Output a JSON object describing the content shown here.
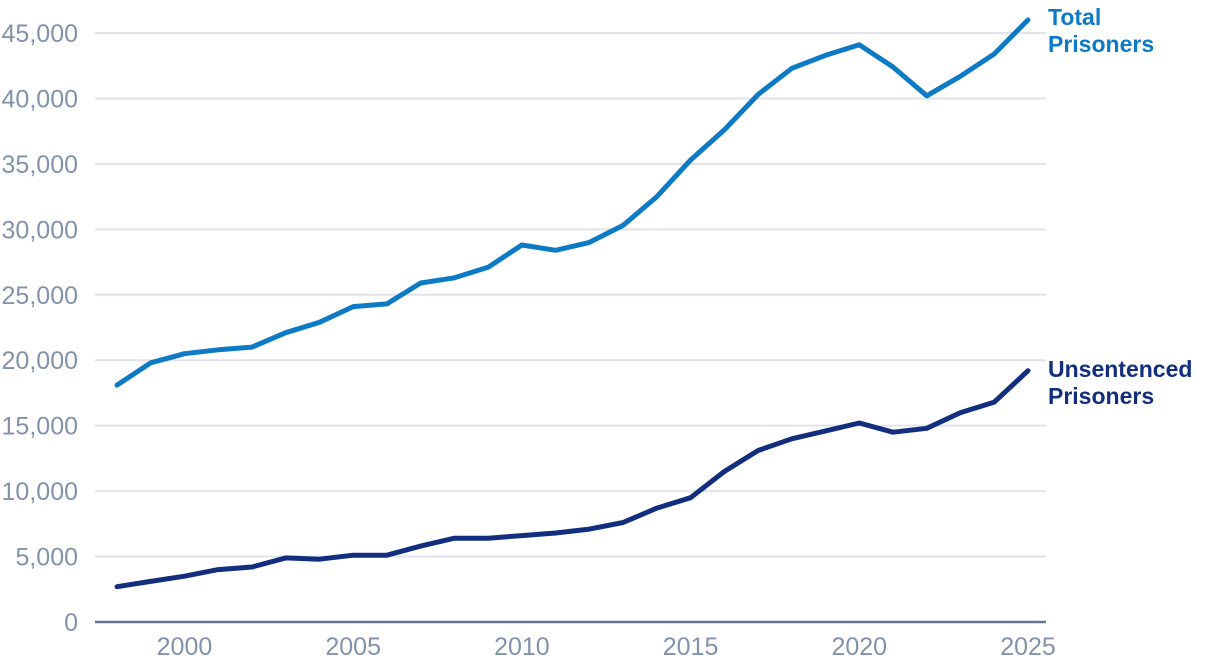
{
  "chart_data": {
    "type": "line",
    "title": "",
    "xlabel": "",
    "ylabel": "",
    "x": [
      1998,
      1999,
      2000,
      2001,
      2002,
      2003,
      2004,
      2005,
      2006,
      2007,
      2008,
      2009,
      2010,
      2011,
      2012,
      2013,
      2014,
      2015,
      2016,
      2017,
      2018,
      2019,
      2020,
      2021,
      2022,
      2023,
      2024,
      2025
    ],
    "series": [
      {
        "name": "Total Prisoners",
        "label_lines": [
          "Total",
          "Prisoners"
        ],
        "color": "#0d7ac5",
        "values": [
          18100,
          19800,
          20500,
          20800,
          21000,
          22100,
          22900,
          24100,
          24300,
          25900,
          26300,
          27100,
          28800,
          28400,
          29000,
          30300,
          32500,
          35300,
          37600,
          40300,
          42300,
          43300,
          44100,
          42400,
          40200,
          41700,
          43400,
          46000
        ]
      },
      {
        "name": "Unsentenced Prisoners",
        "label_lines": [
          "Unsentenced",
          "Prisoners"
        ],
        "color": "#132e7e",
        "values": [
          2700,
          3100,
          3500,
          4000,
          4200,
          4900,
          4800,
          5100,
          5100,
          5800,
          6400,
          6400,
          6600,
          6800,
          7100,
          7600,
          8700,
          9500,
          11500,
          13100,
          14000,
          14600,
          15200,
          14500,
          14800,
          16000,
          16800,
          19200
        ]
      }
    ],
    "ylim": [
      0,
      45000
    ],
    "yticks": [
      0,
      5000,
      10000,
      15000,
      20000,
      25000,
      30000,
      35000,
      40000,
      45000
    ],
    "ytick_labels": [
      "0",
      "5,000",
      "10,000",
      "15,000",
      "20,000",
      "25,000",
      "30,000",
      "35,000",
      "40,000",
      "45,000"
    ],
    "xticks": [
      2000,
      2005,
      2010,
      2015,
      2020,
      2025
    ],
    "xtick_labels": [
      "2000",
      "2005",
      "2010",
      "2015",
      "2020",
      "2025"
    ],
    "grid": "horizontal",
    "legend_position": "labels-at-line-ends"
  },
  "colors": {
    "total_series": "#0d7ac5",
    "unsentenced_series": "#132e7e",
    "gridline": "#e0e3eb",
    "axis_line": "#66758f",
    "tick_label": "#8292ab",
    "background": "#ffffff"
  }
}
